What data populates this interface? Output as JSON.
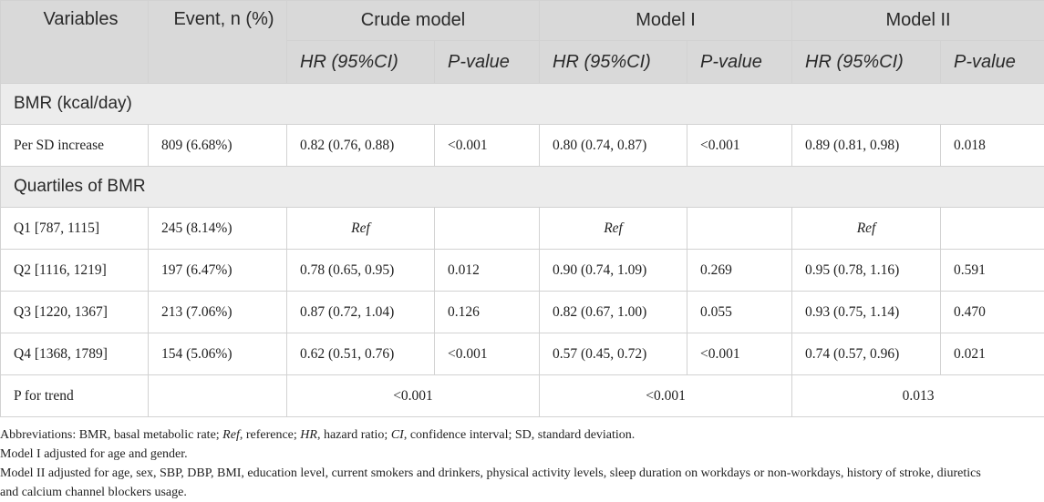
{
  "header": {
    "variables": "Variables",
    "event": "Event, n (%)",
    "models": [
      "Crude model",
      "Model I",
      "Model II"
    ],
    "hr": "HR (95%CI)",
    "p": "P-value"
  },
  "sections": {
    "bmr": "BMR (kcal/day)",
    "quartiles": "Quartiles of BMR"
  },
  "rows": {
    "per_sd": {
      "label": "Per SD increase",
      "event": "809 (6.68%)",
      "c_hr": "0.82 (0.76, 0.88)",
      "c_p": "<0.001",
      "m1_hr": "0.80 (0.74, 0.87)",
      "m1_p": "<0.001",
      "m2_hr": "0.89 (0.81, 0.98)",
      "m2_p": "0.018"
    },
    "q1": {
      "label": "Q1 [787, 1115]",
      "event": "245 (8.14%)",
      "c_hr": "Ref",
      "c_p": "",
      "m1_hr": "Ref",
      "m1_p": "",
      "m2_hr": "Ref",
      "m2_p": ""
    },
    "q2": {
      "label": "Q2 [1116, 1219]",
      "event": "197 (6.47%)",
      "c_hr": "0.78 (0.65, 0.95)",
      "c_p": "0.012",
      "m1_hr": "0.90 (0.74, 1.09)",
      "m1_p": "0.269",
      "m2_hr": "0.95 (0.78, 1.16)",
      "m2_p": "0.591"
    },
    "q3": {
      "label": "Q3 [1220, 1367]",
      "event": "213 (7.06%)",
      "c_hr": "0.87 (0.72, 1.04)",
      "c_p": "0.126",
      "m1_hr": "0.82 (0.67, 1.00)",
      "m1_p": "0.055",
      "m2_hr": "0.93 (0.75, 1.14)",
      "m2_p": "0.470"
    },
    "q4": {
      "label": "Q4 [1368, 1789]",
      "event": "154 (5.06%)",
      "c_hr": "0.62 (0.51, 0.76)",
      "c_p": "<0.001",
      "m1_hr": "0.57 (0.45, 0.72)",
      "m1_p": "<0.001",
      "m2_hr": "0.74 (0.57, 0.96)",
      "m2_p": "0.021"
    },
    "trend": {
      "label": "P for trend",
      "event": "",
      "c": "<0.001",
      "m1": "<0.001",
      "m2": "0.013"
    }
  },
  "footnotes": {
    "abbr_prefix": "Abbreviations: BMR, basal metabolic rate; ",
    "abbr_ref": "Ref",
    "abbr_mid1": ", reference; ",
    "abbr_hr": "HR",
    "abbr_mid2": ", hazard ratio; ",
    "abbr_ci": "CI",
    "abbr_end": ", confidence interval; SD, standard deviation.",
    "model1": "Model I adjusted for age and gender.",
    "model2_line1": "Model II adjusted for age, sex, SBP, DBP, BMI, education level, current smokers and drinkers, physical activity levels, sleep duration on workdays or non-workdays, history of stroke, diuretics",
    "model2_line2": "and calcium channel blockers usage."
  }
}
